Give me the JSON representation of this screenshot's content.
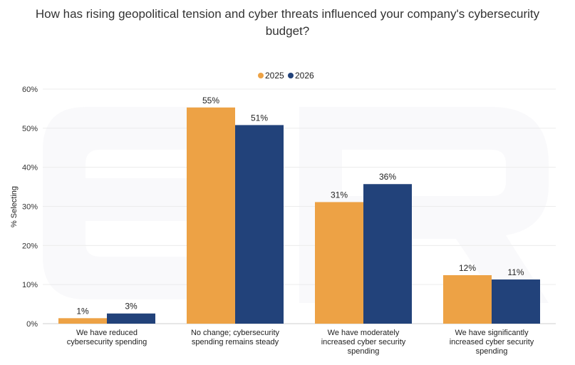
{
  "chart_data": {
    "type": "bar",
    "title": "How has rising geopolitical tension and cyber threats influenced your company's cybersecurity budget?",
    "title_lines": [
      "How has rising geopolitical tension and cyber threats influenced your company's cybersecurity",
      "budget?"
    ],
    "ylabel": "% Selecting",
    "xlabel": "",
    "ylim": [
      0,
      60
    ],
    "yticks": [
      "0%",
      "10%",
      "20%",
      "30%",
      "40%",
      "50%",
      "60%"
    ],
    "ytick_values": [
      0,
      10,
      20,
      30,
      40,
      50,
      60
    ],
    "grid": true,
    "legend_position": "top-center",
    "categories": [
      [
        "We have reduced",
        "cybersecurity spending"
      ],
      [
        "No change; cybersecurity",
        "spending remains steady"
      ],
      [
        "We have moderately",
        "increased cyber security",
        "spending"
      ],
      [
        "We have significantly",
        "increased cyber security",
        "spending"
      ]
    ],
    "series": [
      {
        "name": "2025",
        "color": "#EDA245",
        "values": [
          1.4,
          55.3,
          31.1,
          12.4
        ],
        "labels": [
          "1%",
          "55%",
          "31%",
          "12%"
        ]
      },
      {
        "name": "2026",
        "color": "#22427A",
        "values": [
          2.6,
          50.8,
          35.7,
          11.3
        ],
        "labels": [
          "3%",
          "51%",
          "36%",
          "11%"
        ]
      }
    ]
  }
}
